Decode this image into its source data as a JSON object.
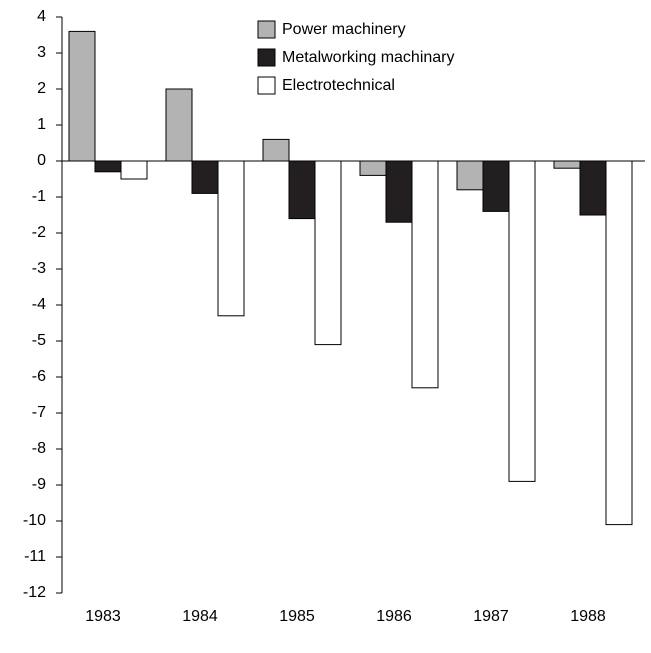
{
  "chart_data": {
    "type": "bar",
    "categories": [
      "1983",
      "1984",
      "1985",
      "1986",
      "1987",
      "1988"
    ],
    "series": [
      {
        "name": "Power machinery",
        "color": "#b3b3b3",
        "values": [
          3.6,
          2.0,
          0.6,
          -0.4,
          -0.8,
          -0.2
        ]
      },
      {
        "name": "Metalworking machinary",
        "color": "#231f20",
        "values": [
          -0.3,
          -0.9,
          -1.6,
          -1.7,
          -1.4,
          -1.5
        ]
      },
      {
        "name": "Electrotechnical",
        "color": "#ffffff",
        "values": [
          -0.5,
          -4.3,
          -5.1,
          -6.3,
          -8.9,
          -10.1
        ]
      }
    ],
    "ylim": [
      -12,
      4
    ],
    "yticks": [
      -12,
      -11,
      -10,
      -9,
      -8,
      -7,
      -6,
      -5,
      -4,
      -3,
      -2,
      -1,
      0,
      1,
      2,
      3,
      4
    ],
    "legend": "top",
    "grid": false
  }
}
